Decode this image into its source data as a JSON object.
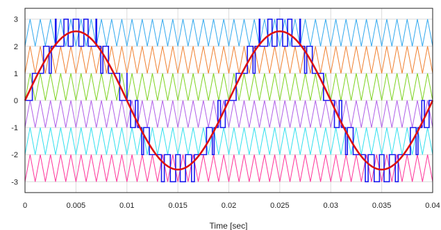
{
  "chart_data": {
    "type": "line",
    "title": "",
    "xlabel": "Time [sec]",
    "ylabel": "",
    "xlim": [
      0,
      0.04
    ],
    "ylim": [
      -3.4,
      3.4
    ],
    "grid": true,
    "x_ticks": [
      0,
      0.005,
      0.01,
      0.015,
      0.02,
      0.025,
      0.03,
      0.035,
      0.04
    ],
    "x_tick_labels": [
      "0",
      "0.005",
      "0.01",
      "0.015",
      "0.02",
      "0.025",
      "0.03",
      "0.035",
      "0.04"
    ],
    "y_ticks": [
      3,
      2,
      1,
      0,
      -1,
      -2,
      -3
    ],
    "y_tick_labels": [
      "3",
      "2",
      "1",
      "0",
      "-1",
      "-2",
      "-3"
    ],
    "reference": {
      "shape": "sine",
      "amplitude": 2.55,
      "frequency_hz": 50,
      "color": "#dd1111"
    },
    "carriers": {
      "shape": "triangle",
      "frequency_hz": 1000,
      "bands": [
        {
          "min": 2,
          "max": 3,
          "color": "#33a9ee"
        },
        {
          "min": 1,
          "max": 2,
          "color": "#f08030"
        },
        {
          "min": 0,
          "max": 1,
          "color": "#7ed321"
        },
        {
          "min": -1,
          "max": 0,
          "color": "#b060e8"
        },
        {
          "min": -2,
          "max": -1,
          "color": "#33e0ee"
        },
        {
          "min": -3,
          "max": -2,
          "color": "#ff3399"
        }
      ]
    },
    "output": {
      "shape": "multilevel staircase",
      "levels": [
        -3,
        -2,
        -1,
        0,
        1,
        2,
        3
      ],
      "color": "#1a1aee"
    }
  }
}
